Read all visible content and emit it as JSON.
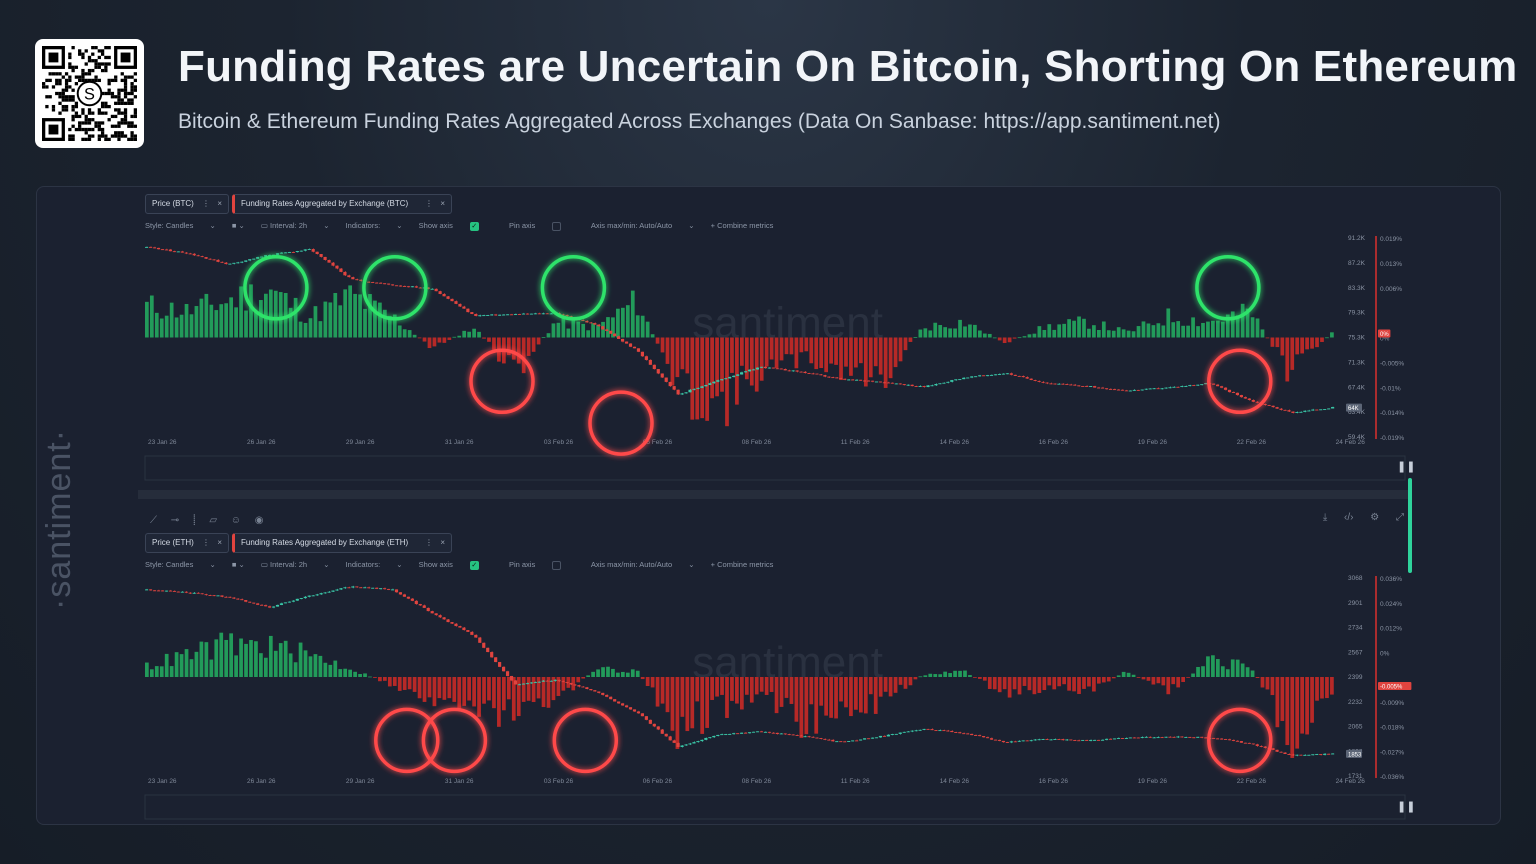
{
  "header": {
    "title": "Funding Rates are Uncertain On Bitcoin, Shorting On Ethereum",
    "subtitle": "Bitcoin & Ethereum Funding Rates Aggregated Across Exchanges (Data On Sanbase: https://app.santiment.net)"
  },
  "brand": {
    "side_logo": "·santiment·",
    "watermark": "santiment",
    "qr_letter": "S"
  },
  "colors": {
    "up": "#26a96c",
    "down": "#d9302e",
    "green_circle": "#2ee36b",
    "red_circle": "#ff4a4a",
    "price_line": "#3ac8a8"
  },
  "toolbar": {
    "style": "Style: Candles",
    "interval": "Interval: 2h",
    "indicators": "Indicators:",
    "show_axis": "Show axis",
    "pin_axis": "Pin axis",
    "axis_minmax": "Axis max/min: Auto/Auto",
    "combine": "+ Combine metrics"
  },
  "chart_data": [
    {
      "type": "bar",
      "name": "btc",
      "tabs": [
        "Price (BTC)",
        "Funding Rates Aggregated by Exchange (BTC)"
      ],
      "x_ticks": [
        "23 Jan 26",
        "26 Jan 26",
        "29 Jan 26",
        "31 Jan 26",
        "03 Feb 26",
        "06 Feb 26",
        "08 Feb 26",
        "11 Feb 26",
        "14 Feb 26",
        "16 Feb 26",
        "19 Feb 26",
        "22 Feb 26",
        "24 Feb 26"
      ],
      "price_ticks": [
        "91.2K",
        "87.2K",
        "83.3K",
        "79.3K",
        "75.3K",
        "71.3K",
        "67.4K",
        "63.4K",
        "59.4K"
      ],
      "funding_ticks": [
        "0.019%",
        "0.013%",
        "0.006%",
        "",
        "0%",
        "-0.005%",
        "-0.01%",
        "-0.014%",
        "-0.019%"
      ],
      "current_price_label": "64K",
      "zero_label": "0%",
      "price_range": [
        59400,
        91200
      ],
      "funding_range": [
        -0.019,
        0.019
      ],
      "price_anchors": [
        89700,
        88800,
        87000,
        88500,
        89400,
        84600,
        83700,
        83100,
        78800,
        79000,
        79200,
        77300,
        73200,
        66200,
        68500,
        70600,
        69800,
        68600,
        68200,
        67400,
        68900,
        69600,
        68000,
        67500,
        66800,
        67300,
        68000,
        65200,
        63300,
        64100
      ],
      "funding_anchors": [
        0.006,
        0.005,
        0.007,
        0.009,
        0.004,
        0.008,
        0.004,
        -0.002,
        0.002,
        -0.007,
        0.003,
        0.002,
        0.007,
        -0.01,
        -0.013,
        -0.007,
        -0.004,
        -0.006,
        -0.008,
        0.002,
        0.003,
        -0.001,
        0.002,
        0.003,
        0.001,
        0.004,
        0.003,
        0.005,
        -0.007,
        0.001
      ],
      "green_circles": [
        0.11,
        0.21,
        0.36,
        0.91
      ],
      "red_circles": [
        0.3,
        0.4,
        0.92
      ]
    },
    {
      "type": "bar",
      "name": "eth",
      "tabs": [
        "Price (ETH)",
        "Funding Rates Aggregated by Exchange (ETH)"
      ],
      "x_ticks": [
        "23 Jan 26",
        "26 Jan 26",
        "29 Jan 26",
        "31 Jan 26",
        "03 Feb 26",
        "06 Feb 26",
        "08 Feb 26",
        "11 Feb 26",
        "14 Feb 26",
        "16 Feb 26",
        "19 Feb 26",
        "22 Feb 26",
        "24 Feb 26"
      ],
      "price_ticks": [
        "3068",
        "2901",
        "2734",
        "2567",
        "2399",
        "2232",
        "2065",
        "1898",
        "1731"
      ],
      "funding_ticks": [
        "0.036%",
        "0.024%",
        "0.012%",
        "0%",
        "",
        "-0.009%",
        "-0.018%",
        "-0.027%",
        "-0.036%"
      ],
      "current_price_label": "1853",
      "zero_label": "-0.005%",
      "price_range": [
        1731,
        3068
      ],
      "funding_range": [
        -0.036,
        0.036
      ],
      "price_anchors": [
        2990,
        2970,
        2940,
        2870,
        2950,
        3010,
        2990,
        2830,
        2680,
        2350,
        2380,
        2300,
        2160,
        1930,
        2010,
        2030,
        2000,
        1960,
        2000,
        2050,
        2020,
        1960,
        1980,
        1970,
        1990,
        1995,
        1990,
        1950,
        1870,
        1880
      ],
      "funding_anchors": [
        0.004,
        0.008,
        0.012,
        0.011,
        0.008,
        0.003,
        -0.003,
        -0.008,
        -0.014,
        -0.012,
        -0.009,
        0.003,
        0.002,
        -0.019,
        -0.012,
        -0.006,
        -0.017,
        -0.012,
        -0.009,
        0.001,
        0.002,
        -0.006,
        -0.004,
        -0.005,
        0.002,
        -0.006,
        0.006,
        0.004,
        -0.021,
        -0.005
      ],
      "green_circles": [],
      "red_circles": [
        0.22,
        0.26,
        0.37,
        0.92
      ]
    }
  ]
}
